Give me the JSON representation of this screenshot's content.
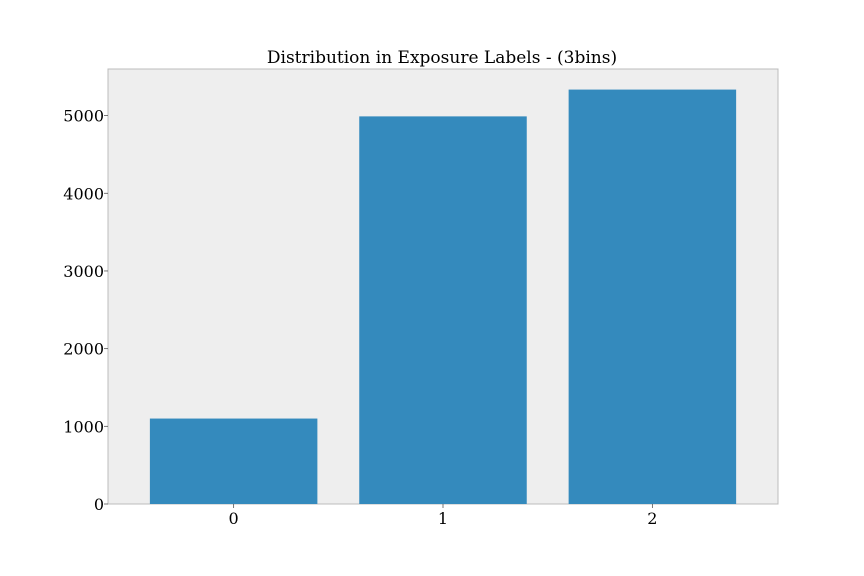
{
  "chart_data": {
    "type": "bar",
    "title": "Distribution in Exposure Labels - (3bins)",
    "xlabel": "",
    "ylabel": "",
    "categories": [
      "0",
      "1",
      "2"
    ],
    "values": [
      1100,
      4990,
      5335
    ],
    "ylim": [
      0,
      5600
    ],
    "yticks": [
      0,
      1000,
      2000,
      3000,
      4000,
      5000
    ],
    "ytick_labels": [
      "0",
      "1000",
      "2000",
      "3000",
      "4000",
      "5000"
    ],
    "grid": false,
    "legend": "none",
    "colors": {
      "bar": "#348abd",
      "plot_background": "#eeeeee",
      "plot_border": "#bcbcbc",
      "page_background": "#ffffff"
    }
  }
}
